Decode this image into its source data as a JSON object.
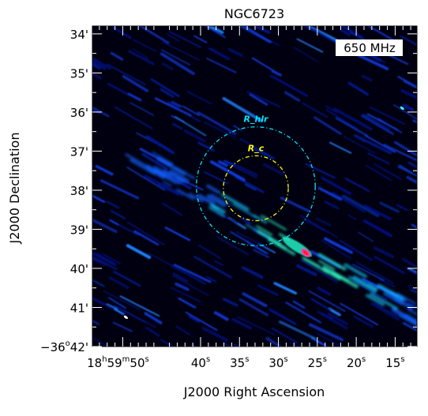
{
  "chart_data": {
    "type": "heatmap",
    "title": "NGC6723",
    "xlabel": "J2000 Right Ascension",
    "ylabel": "J2000 Declination",
    "frequency_label": "650 MHz",
    "x_ticks": [
      {
        "label_h": "18",
        "label_m": "59",
        "label_s": "50",
        "ra_sec": 50
      },
      {
        "label": "40",
        "ra_sec": 40
      },
      {
        "label": "35",
        "ra_sec": 35
      },
      {
        "label": "30",
        "ra_sec": 30
      },
      {
        "label": "25",
        "ra_sec": 25
      },
      {
        "label": "20",
        "ra_sec": 20
      },
      {
        "label": "15",
        "ra_sec": 15
      }
    ],
    "y_ticks": [
      {
        "label": "34'",
        "dec_arcmin": 34
      },
      {
        "label": "35'",
        "dec_arcmin": 35
      },
      {
        "label": "36'",
        "dec_arcmin": 36
      },
      {
        "label": "37'",
        "dec_arcmin": 37
      },
      {
        "label": "38'",
        "dec_arcmin": 38
      },
      {
        "label": "39'",
        "dec_arcmin": 39
      },
      {
        "label": "40'",
        "dec_arcmin": 40
      },
      {
        "label": "41'",
        "dec_arcmin": 41
      },
      {
        "label_deg": "−36",
        "label_min": "42",
        "dec_arcmin": 42
      }
    ],
    "x_range_ra_sec": [
      53.9,
      12.2
    ],
    "y_range_dec_arcmin": [
      33.8,
      42.0
    ],
    "circles": [
      {
        "name": "R_hlr",
        "center_ra_sec": 32.9,
        "center_dec_arcmin": 37.9,
        "radius_arcmin": 1.52,
        "color": "#00e5ff"
      },
      {
        "name": "R_c",
        "center_ra_sec": 32.9,
        "center_dec_arcmin": 37.95,
        "radius_arcmin": 0.83,
        "color": "#ffff00"
      }
    ],
    "colors": {
      "background": "#000010",
      "emission_faint": "#0018a0",
      "emission_mid": "#0070ff",
      "emission_bright": "#00ffc0",
      "emission_peak": "#ff2020"
    },
    "grid": false
  }
}
